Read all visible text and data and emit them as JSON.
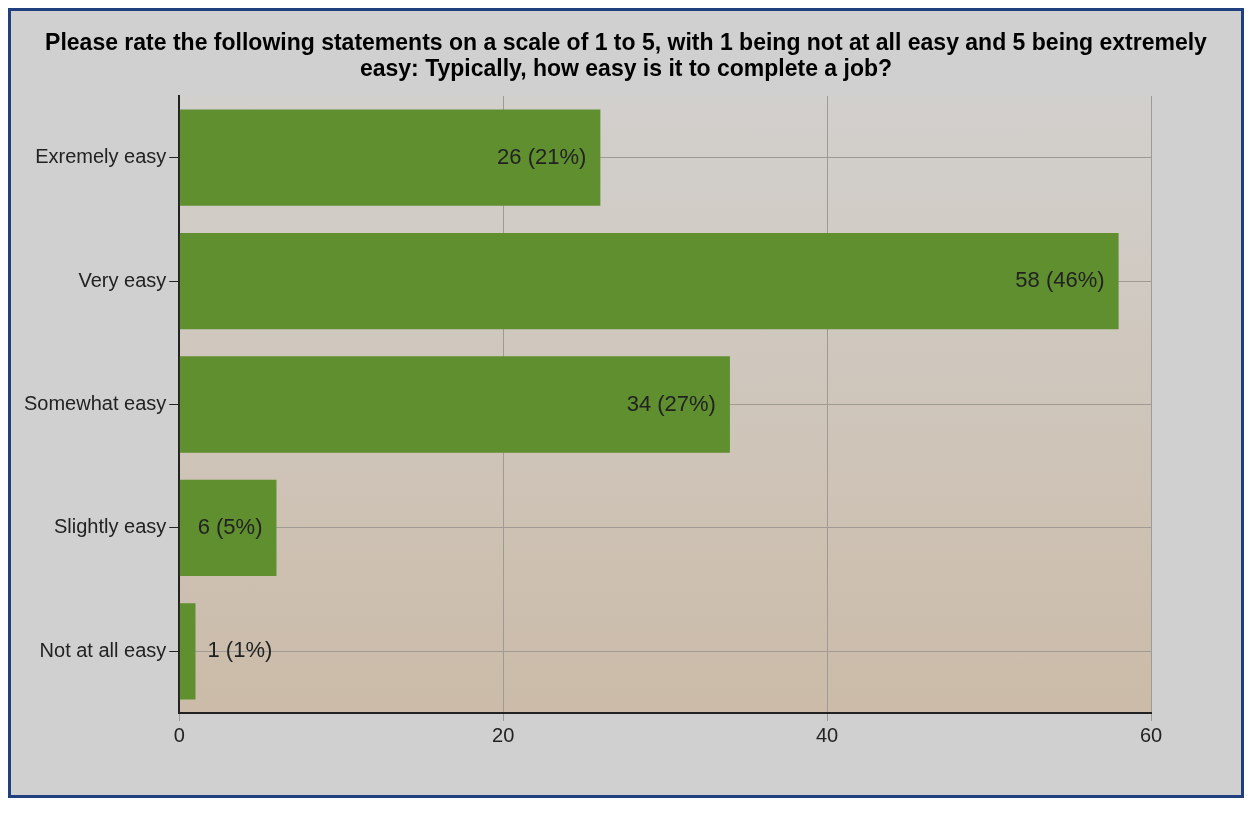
{
  "chart_data": {
    "type": "bar",
    "orientation": "horizontal",
    "title": "Please rate the following statements on a scale of 1 to 5, with 1 being not at all easy and 5 being extremely easy:  Typically, how easy is it to complete a job?",
    "categories": [
      "Exremely easy",
      "Very easy",
      "Somewhat easy",
      "Slightly easy",
      "Not at all easy"
    ],
    "values": [
      26,
      58,
      34,
      6,
      1
    ],
    "value_labels": [
      "26 (21%)",
      "58 (46%)",
      "34 (27%)",
      "6 (5%)",
      "1 (1%)"
    ],
    "color": "#5f8f2e",
    "xlim": [
      0,
      60
    ],
    "xticks": [
      0,
      20,
      40,
      60
    ],
    "grid": true
  }
}
